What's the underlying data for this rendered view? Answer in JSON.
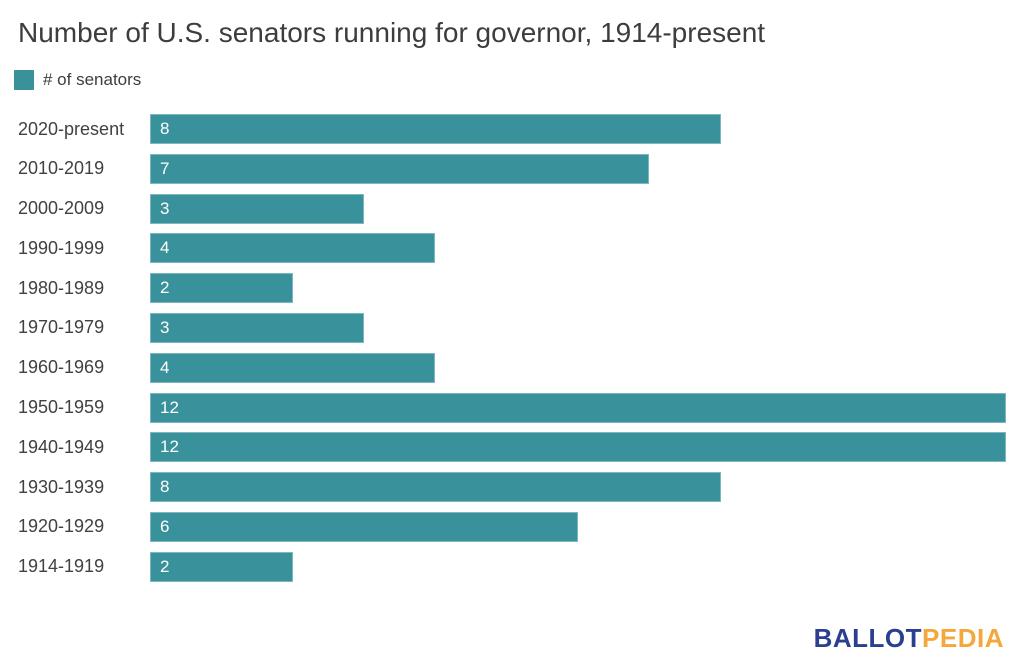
{
  "title": "Number of U.S. senators running for governor, 1914-present",
  "legend": {
    "label": "# of senators",
    "swatch_color": "#38919b"
  },
  "chart_data": {
    "type": "bar",
    "orientation": "horizontal",
    "title": "Number of U.S. senators running for governor, 1914-present",
    "series_name": "# of senators",
    "categories": [
      "2020-present",
      "2010-2019",
      "2000-2009",
      "1990-1999",
      "1980-1989",
      "1970-1979",
      "1960-1969",
      "1950-1959",
      "1940-1949",
      "1930-1939",
      "1920-1929",
      "1914-1919"
    ],
    "values": [
      8,
      7,
      3,
      4,
      2,
      3,
      4,
      12,
      12,
      8,
      6,
      2
    ],
    "xlim": [
      0,
      12
    ],
    "bar_color": "#38919b",
    "value_label_color": "#ffffff",
    "value_labels_inside_bar": true,
    "grid": false,
    "axis_lines": false,
    "legend_position": "top-left"
  },
  "footer": {
    "logo_part1": "BALLOT",
    "logo_part2": "PEDIA",
    "logo_part1_color": "#2a3f90",
    "logo_part2_color": "#f6a73c"
  }
}
